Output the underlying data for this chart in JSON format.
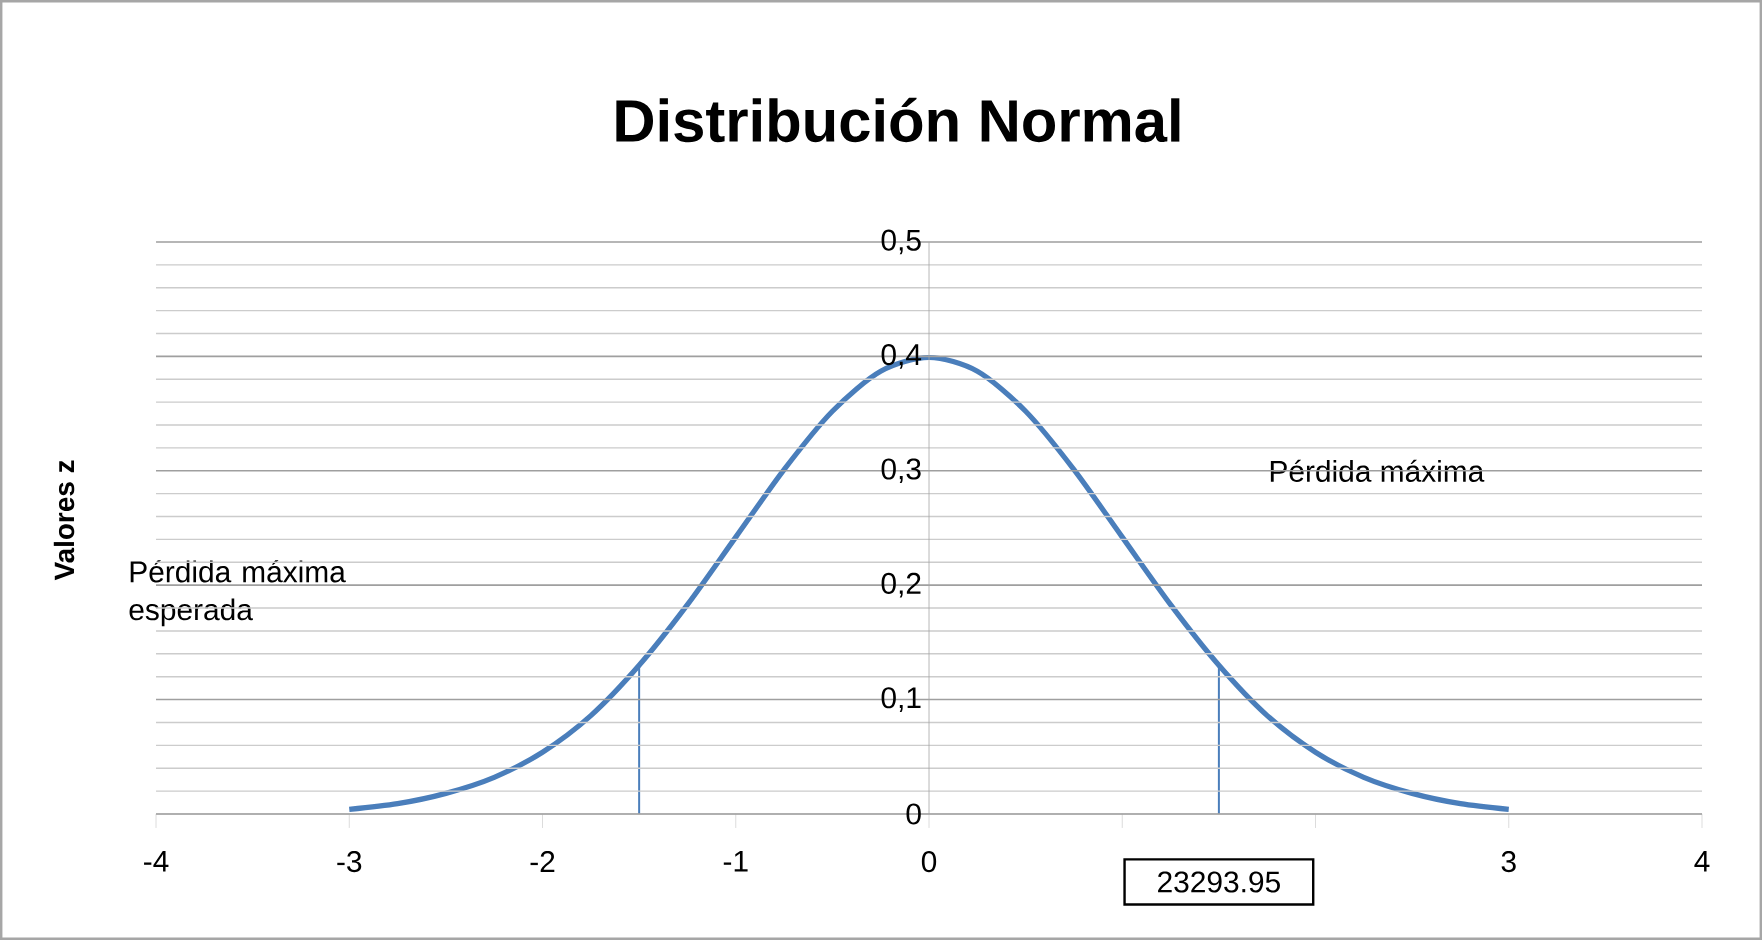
{
  "chart_data": {
    "type": "line",
    "title": "Distribución Normal",
    "ylabel": "Valores z",
    "xlim": [
      -4,
      4
    ],
    "xticks": [
      -4,
      -3,
      -2,
      -1,
      0,
      {
        "value": 1,
        "label": null
      },
      {
        "value": 2,
        "label": null
      },
      3,
      4
    ],
    "ylim": [
      0,
      0.5
    ],
    "yticks": [
      0,
      {
        "value": 0.1,
        "label": "0,1"
      },
      {
        "value": 0.2,
        "label": "0,2"
      },
      {
        "value": 0.3,
        "label": "0,3"
      },
      {
        "value": 0.4,
        "label": "0,4"
      },
      {
        "value": 0.5,
        "label": "0,5"
      }
    ],
    "grid": "y",
    "marker": "none",
    "line_style": "solid",
    "series": [
      {
        "color": "#4a7ebb",
        "x": [
          -3,
          -2.75,
          -2.5,
          -2.25,
          -2,
          -1.75,
          -1.5,
          -1.25,
          -1,
          -0.75,
          -0.5,
          -0.25,
          0,
          0.25,
          0.5,
          0.75,
          1,
          1.25,
          1.5,
          1.75,
          2,
          2.25,
          2.5,
          2.75,
          3
        ],
        "values": [
          0.004,
          0.009,
          0.018,
          0.032,
          0.054,
          0.086,
          0.13,
          0.183,
          0.242,
          0.301,
          0.352,
          0.387,
          0.399,
          0.387,
          0.352,
          0.301,
          0.242,
          0.183,
          0.13,
          0.086,
          0.054,
          0.032,
          0.018,
          0.009,
          0.004
        ]
      },
      {
        "color": "#4a7ebb",
        "x": [
          -1.5,
          -1.5
        ],
        "values": [
          0,
          0.13
        ]
      },
      {
        "color": "#4a7ebb",
        "x": [
          1.5,
          1.5
        ],
        "values": [
          0,
          0.13
        ]
      }
    ],
    "annotations": [
      "Pérdida máxima esperada",
      "Pérdida máxima",
      "23293.95"
    ]
  }
}
